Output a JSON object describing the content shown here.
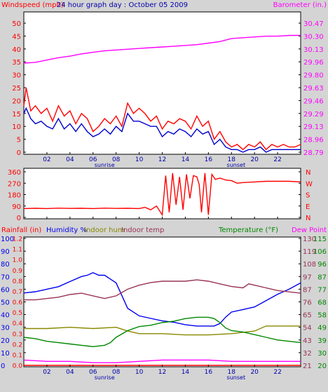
{
  "x_axis": {
    "xlim": [
      0,
      24
    ],
    "tick_values": [
      2,
      4,
      6,
      8,
      10,
      12,
      14,
      16,
      18,
      20,
      22
    ],
    "tick_labels": [
      "02",
      "04",
      "06",
      "08",
      "10",
      "12",
      "14",
      "16",
      "18",
      "20",
      "22"
    ],
    "sunrise_label": "sunrise",
    "sunrise_hour": 7.0,
    "sunset_label": "sunset",
    "sunset_hour": 18.4
  },
  "chart_data": [
    {
      "type": "line",
      "title": "24 hour graph day : October 05 2009",
      "left_axis_title": "Windspeed (mph)",
      "right_axis_title": "Barometer (in.)",
      "left_ylim": [
        0,
        50
      ],
      "left_ticks": [
        "0",
        "5",
        "10",
        "15",
        "20",
        "25",
        "30",
        "35",
        "40",
        "45",
        "50"
      ],
      "right_ticks": [
        "28.79",
        "28.96",
        "29.13",
        "29.29",
        "29.46",
        "29.63",
        "29.80",
        "29.96",
        "30.13",
        "30.30",
        "30.47"
      ],
      "right_ylim": [
        28.79,
        30.47
      ],
      "grid": false,
      "series": [
        {
          "role": "wind gust",
          "color": "#ff0000",
          "axis": "left",
          "x": [
            0,
            0.2,
            0.6,
            1,
            1.5,
            2,
            2.5,
            3,
            3.5,
            4,
            4.5,
            5,
            5.5,
            6,
            6.5,
            7,
            7.5,
            8,
            8.5,
            9,
            9.5,
            10,
            10.5,
            11,
            11.5,
            12,
            12.5,
            13,
            13.5,
            14,
            14.5,
            15,
            15.5,
            16,
            16.5,
            17,
            17.5,
            18,
            18.5,
            19,
            19.5,
            20,
            20.5,
            21,
            21.5,
            22,
            22.5,
            23,
            23.5,
            24
          ],
          "y": [
            18,
            25,
            16,
            18,
            15,
            17,
            12,
            18,
            14,
            16,
            11,
            15,
            13,
            8,
            10,
            13,
            11,
            14,
            10,
            19,
            15,
            17,
            15,
            12,
            14,
            9,
            12,
            11,
            13,
            12,
            9,
            14,
            10,
            12,
            5,
            8,
            4,
            2,
            3,
            1,
            3,
            2,
            4,
            1,
            3,
            2,
            3,
            2,
            2,
            3
          ]
        },
        {
          "role": "wind average",
          "color": "#0000cc",
          "axis": "left",
          "x": [
            0,
            0.2,
            0.6,
            1,
            1.5,
            2,
            2.5,
            3,
            3.5,
            4,
            4.5,
            5,
            5.5,
            6,
            6.5,
            7,
            7.5,
            8,
            8.5,
            9,
            9.5,
            10,
            10.5,
            11,
            11.5,
            12,
            12.5,
            13,
            13.5,
            14,
            14.5,
            15,
            15.5,
            16,
            16.5,
            17,
            17.5,
            18,
            18.5,
            19,
            19.5,
            20,
            20.5,
            21,
            21.5,
            22,
            22.5,
            23,
            23.5,
            24
          ],
          "y": [
            15,
            17,
            13,
            11,
            12,
            10,
            9,
            13,
            9,
            11,
            8,
            11,
            8,
            6,
            7,
            9,
            7,
            10,
            8,
            15,
            12,
            12,
            11,
            10,
            10,
            6,
            8,
            7,
            9,
            8,
            6,
            9,
            7,
            8,
            3,
            5,
            2,
            1,
            1,
            0,
            1,
            1,
            2,
            0,
            1,
            1,
            1,
            1,
            1,
            1
          ]
        },
        {
          "role": "barometer",
          "color": "#ff00ff",
          "axis": "right",
          "x": [
            0,
            1,
            2,
            3,
            4,
            5,
            6,
            7,
            8,
            9,
            10,
            11,
            12,
            13,
            14,
            15,
            16,
            17,
            18,
            19,
            20,
            21,
            22,
            23,
            24
          ],
          "y": [
            29.95,
            29.96,
            29.99,
            30.02,
            30.04,
            30.07,
            30.09,
            30.11,
            30.12,
            30.13,
            30.14,
            30.15,
            30.16,
            30.17,
            30.18,
            30.19,
            30.21,
            30.23,
            30.27,
            30.28,
            30.29,
            30.3,
            30.3,
            30.31,
            30.31
          ]
        }
      ]
    },
    {
      "type": "line",
      "left_ylim": [
        0,
        360
      ],
      "left_ticks": [
        "0",
        "90",
        "180",
        "270",
        "360"
      ],
      "right_ticks": [
        "N",
        "E",
        "S",
        "W",
        "N"
      ],
      "grid": false,
      "series": [
        {
          "role": "wind direction",
          "color": "#ff0000",
          "axis": "left",
          "x": [
            0,
            1,
            2,
            3,
            4,
            5,
            6,
            7,
            8,
            9,
            10,
            10.5,
            11,
            11.5,
            12,
            12.3,
            12.6,
            12.9,
            13.2,
            13.5,
            13.8,
            14.1,
            14.4,
            14.7,
            15,
            15.2,
            15.4,
            15.7,
            16,
            16.3,
            16.6,
            17,
            17.5,
            18,
            18.5,
            19,
            20,
            21,
            22,
            23,
            24
          ],
          "y": [
            70,
            72,
            70,
            73,
            71,
            72,
            70,
            73,
            71,
            72,
            70,
            80,
            60,
            90,
            20,
            330,
            40,
            350,
            100,
            320,
            60,
            340,
            150,
            330,
            320,
            260,
            40,
            350,
            20,
            340,
            300,
            310,
            295,
            290,
            270,
            275,
            280,
            285,
            285,
            285,
            280
          ]
        }
      ]
    },
    {
      "type": "line",
      "legend_left": [
        "Rainfall (in)",
        "Humidity %",
        "Indoor hum",
        "Indoor temp"
      ],
      "legend_right": [
        "Temperature (°F)",
        "Dew Point"
      ],
      "rain_ticks": [
        "0.0",
        "0.1",
        "0.2",
        "0.3",
        "0.4",
        "0.5",
        "0.6",
        "0.7",
        "0.8",
        "0.9",
        "1.0",
        "1.1",
        "1.2"
      ],
      "humidity_ticks": [
        "0",
        "10",
        "20",
        "30",
        "40",
        "50",
        "60",
        "70",
        "80",
        "90",
        "100"
      ],
      "temp_ticks_outer": [
        "20",
        "30",
        "39",
        "49",
        "58",
        "68",
        "77",
        "87",
        "96",
        "106",
        "115"
      ],
      "temp_ticks_inner": [
        "21",
        "32",
        "43",
        "54",
        "65",
        "76",
        "87",
        "97",
        "108",
        "119",
        "130"
      ],
      "left_ylim": [
        0,
        100
      ],
      "right_ylim": [
        20,
        115
      ],
      "grid": false,
      "series": [
        {
          "role": "humidity",
          "color": "#0000ee",
          "axis": "left",
          "x": [
            0,
            1,
            2,
            3,
            4,
            5,
            5.5,
            6,
            6.5,
            7,
            7.5,
            8,
            8.5,
            9,
            10,
            11,
            12,
            13,
            14,
            15,
            16,
            16.5,
            17,
            17.5,
            18,
            19,
            20,
            21,
            22,
            23,
            24
          ],
          "y": [
            57,
            58,
            60,
            62,
            66,
            70,
            71,
            73,
            71,
            71,
            68,
            65,
            55,
            45,
            39,
            37,
            35,
            34,
            32,
            31,
            31,
            31,
            33,
            38,
            42,
            44,
            46,
            51,
            56,
            60,
            65
          ]
        },
        {
          "role": "indoor temp",
          "color": "#993355",
          "axis": "right",
          "x": [
            0,
            1,
            2,
            3,
            4,
            5,
            6,
            7,
            8,
            9,
            10,
            11,
            12,
            13,
            14,
            15,
            16,
            17,
            18,
            19,
            19.5,
            20,
            21,
            22,
            23,
            24
          ],
          "y": [
            69,
            69,
            70,
            71,
            73,
            74,
            72,
            70,
            72,
            77,
            80,
            82,
            83,
            83,
            83,
            84,
            83,
            81,
            79,
            78,
            81,
            80,
            78,
            76,
            75,
            74
          ]
        },
        {
          "role": "indoor hum",
          "color": "#888800",
          "axis": "left",
          "x": [
            0,
            2,
            4,
            6,
            8,
            9,
            10,
            12,
            14,
            16,
            18,
            20,
            21,
            22,
            24
          ],
          "y": [
            29,
            29,
            30,
            29,
            30,
            27,
            25,
            25,
            24,
            24,
            25,
            27,
            31,
            31,
            31
          ]
        },
        {
          "role": "temperature",
          "color": "#008800",
          "axis": "right",
          "x": [
            0,
            1,
            2,
            3,
            4,
            5,
            6,
            7,
            7.5,
            8,
            9,
            10,
            11,
            12,
            13,
            14,
            15,
            16,
            16.5,
            17,
            17.5,
            18,
            19,
            20,
            21,
            22,
            23,
            24
          ],
          "y": [
            41,
            40,
            38,
            37,
            36,
            35,
            34,
            35,
            37,
            41,
            46,
            49,
            50,
            52,
            53,
            55,
            56,
            56,
            55,
            52,
            48,
            46,
            45,
            43,
            41,
            39,
            38,
            37
          ]
        },
        {
          "role": "dew point",
          "color": "#ff00ff",
          "axis": "right",
          "x": [
            0,
            2,
            4,
            6,
            8,
            10,
            12,
            14,
            16,
            18,
            20,
            22,
            24
          ],
          "y": [
            24,
            23,
            23,
            22,
            22,
            23,
            24,
            24,
            24,
            23,
            23,
            23,
            23
          ]
        },
        {
          "role": "rainfall",
          "color": "#ff0000",
          "axis": "left",
          "x": [
            0,
            24
          ],
          "y": [
            0,
            0
          ]
        }
      ]
    }
  ]
}
